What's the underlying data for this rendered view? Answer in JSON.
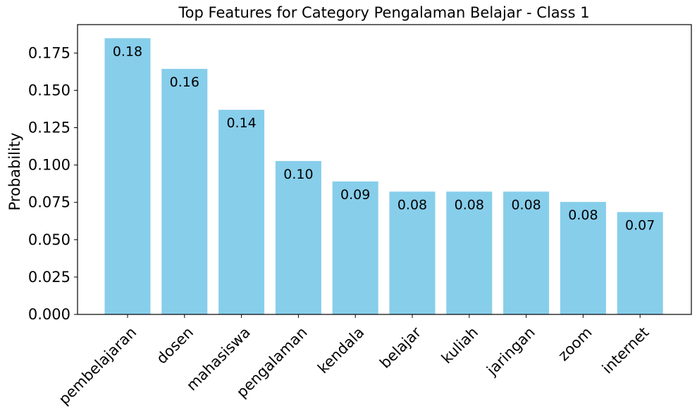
{
  "chart_data": {
    "type": "bar",
    "title": "Top Features for Category Pengalaman Belajar - Class 1",
    "xlabel": "",
    "ylabel": "Probability",
    "categories": [
      "pembelajaran",
      "dosen",
      "mahasiswa",
      "pengalaman",
      "kendala",
      "belajar",
      "kuliah",
      "jaringan",
      "zoom",
      "internet"
    ],
    "values": [
      0.1849,
      0.1644,
      0.137,
      0.1027,
      0.089,
      0.0822,
      0.0822,
      0.0822,
      0.0753,
      0.0685
    ],
    "data_labels": [
      "0.18",
      "0.16",
      "0.14",
      "0.10",
      "0.09",
      "0.08",
      "0.08",
      "0.08",
      "0.08",
      "0.07"
    ],
    "ylim": [
      0,
      0.194
    ],
    "yticks": [
      0,
      0.025,
      0.05,
      0.075,
      0.1,
      0.125,
      0.15,
      0.175
    ],
    "ytick_labels": [
      "0.000",
      "0.025",
      "0.050",
      "0.075",
      "0.100",
      "0.125",
      "0.150",
      "0.175"
    ],
    "grid": false,
    "legend": "none",
    "bar_color": "#87ceeb"
  }
}
